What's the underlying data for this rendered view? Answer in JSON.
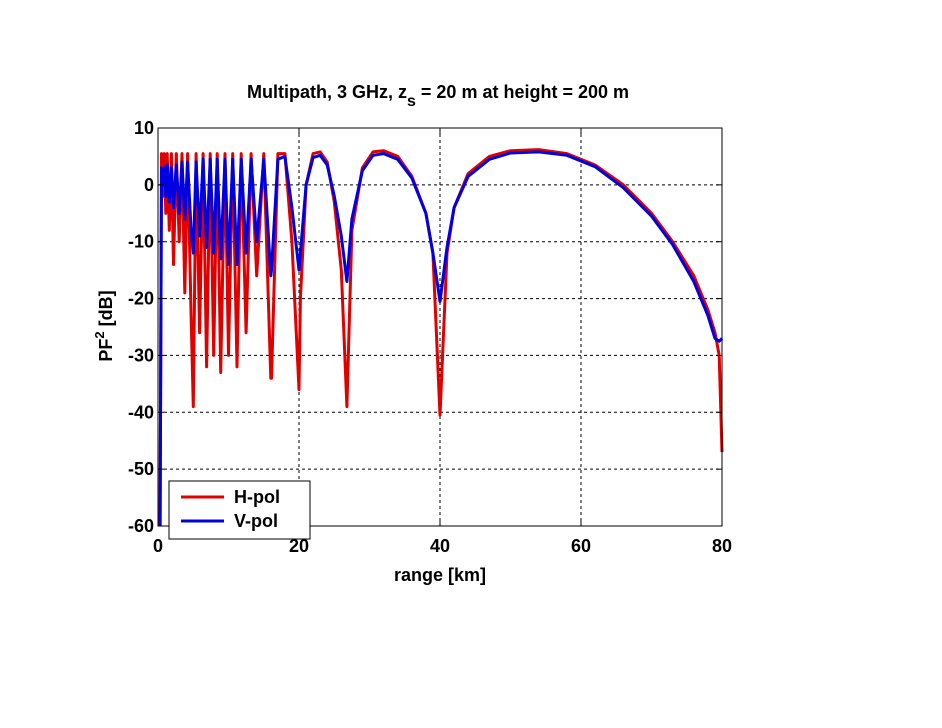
{
  "chart_data": {
    "type": "line",
    "title": "Multipath, 3 GHz, z",
    "title_subscript": "s",
    "title_suffix": " = 20 m at height = 200 m",
    "xlabel": "range [km]",
    "ylabel_main": "PF",
    "ylabel_sup": "2",
    "ylabel_unit": " [dB]",
    "xlim": [
      0,
      80
    ],
    "ylim": [
      -60,
      10
    ],
    "xticks": [
      0,
      20,
      40,
      60,
      80
    ],
    "yticks": [
      10,
      0,
      -10,
      -20,
      -30,
      -40,
      -50,
      -60
    ],
    "grid": true,
    "legend_position": "bottom-left",
    "series": [
      {
        "name": "H-pol",
        "color": "#e00000",
        "x": [
          0.3,
          0.5,
          0.7,
          0.9,
          1.1,
          1.3,
          1.6,
          1.9,
          2.2,
          2.6,
          3.0,
          3.4,
          3.8,
          4.2,
          4.7,
          5.0,
          5.4,
          5.9,
          6.4,
          6.9,
          7.4,
          7.9,
          8.4,
          8.9,
          9.5,
          10.0,
          10.6,
          11.2,
          11.8,
          12.5,
          13.2,
          14.0,
          15.0,
          16.0,
          16.1,
          17.0,
          18.0,
          19.0,
          20.0,
          20.2,
          21.0,
          22.0,
          23.0,
          24.0,
          25.0,
          26.0,
          26.8,
          27.5,
          29.0,
          30.5,
          32.0,
          34.0,
          36.0,
          38.0,
          39.0,
          40.0,
          41.0,
          42.0,
          44.0,
          47.0,
          50.0,
          54.0,
          58.0,
          62.0,
          66.0,
          70.0,
          73.0,
          76.0,
          78.0,
          79.0,
          79.6,
          80.0
        ],
        "values": [
          -62,
          5.5,
          -2,
          5.5,
          -5,
          5.5,
          -8,
          5.5,
          -14,
          5.5,
          -10,
          5.5,
          -19,
          5.5,
          -23,
          -39,
          5.5,
          -26,
          5.5,
          -32,
          5.5,
          -30,
          5.5,
          -33,
          5.5,
          -30,
          5.5,
          -32,
          5.5,
          -26,
          5.5,
          -16,
          5.5,
          -34,
          -34,
          5.5,
          5.5,
          -10,
          -36,
          -20,
          0,
          5.5,
          5.8,
          4,
          -3,
          -15,
          -39,
          -8,
          3,
          5.8,
          6.0,
          5.0,
          1.5,
          -5,
          -12,
          -40.5,
          -12,
          -4,
          2,
          5,
          6.0,
          6.2,
          5.5,
          3.5,
          0,
          -5,
          -10,
          -16,
          -22,
          -26,
          -30,
          -47
        ]
      },
      {
        "name": "V-pol",
        "color": "#0000e0",
        "x": [
          0.3,
          0.5,
          0.7,
          0.9,
          1.1,
          1.3,
          1.6,
          1.9,
          2.2,
          2.6,
          3.0,
          3.4,
          3.8,
          4.2,
          4.7,
          5.0,
          5.4,
          5.9,
          6.4,
          6.9,
          7.4,
          7.9,
          8.4,
          8.9,
          9.5,
          10.0,
          10.6,
          11.2,
          11.8,
          12.5,
          13.2,
          14.0,
          15.0,
          16.0,
          16.1,
          17.0,
          18.0,
          19.0,
          20.0,
          20.2,
          21.0,
          22.0,
          23.0,
          24.0,
          25.0,
          26.0,
          26.8,
          27.5,
          29.0,
          30.5,
          32.0,
          34.0,
          36.0,
          38.0,
          39.0,
          40.0,
          41.0,
          42.0,
          44.0,
          47.0,
          50.0,
          54.0,
          58.0,
          62.0,
          66.0,
          70.0,
          73.0,
          76.0,
          78.0,
          79.0,
          79.6,
          80.0
        ],
        "values": [
          -60,
          3,
          0,
          3,
          -2,
          3.5,
          -3,
          3,
          -4,
          3.5,
          -5,
          4,
          -6,
          4,
          -8,
          -12,
          4,
          -9,
          4.5,
          -11,
          4.5,
          -12,
          4.5,
          -13,
          4.5,
          -14,
          4.5,
          -14,
          4.5,
          -12,
          4.5,
          -10,
          4.5,
          -16,
          -15,
          4.5,
          5.0,
          -4,
          -15,
          -12,
          0,
          4.8,
          5.2,
          3.5,
          -2,
          -9,
          -17,
          -6,
          2.5,
          5.2,
          5.5,
          4.5,
          1.2,
          -5,
          -12,
          -20.5,
          -11,
          -4,
          1.5,
          4.5,
          5.6,
          5.8,
          5.2,
          3.2,
          -0.5,
          -5.5,
          -10.5,
          -17,
          -23,
          -27,
          -27.5,
          -27
        ]
      }
    ]
  }
}
